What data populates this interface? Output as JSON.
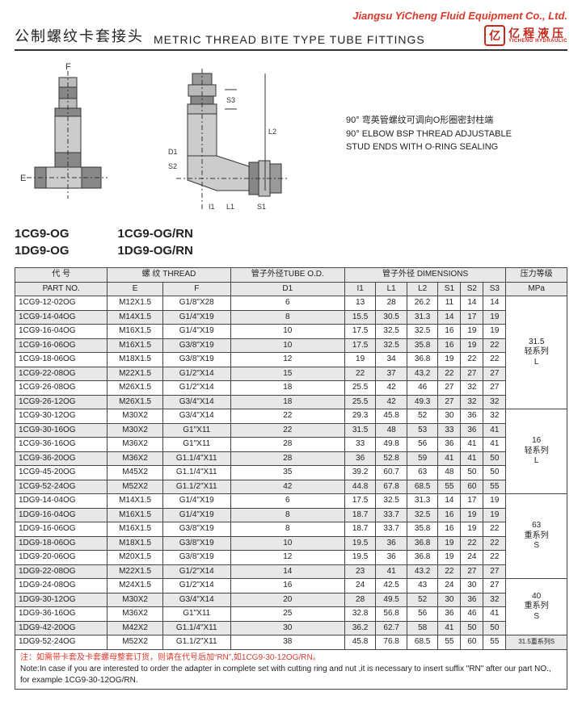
{
  "company": "Jiangsu YiCheng Fluid Equipment Co., Ltd.",
  "title_cn": "公制螺纹卡套接头",
  "title_en": "METRIC THREAD BITE TYPE TUBE FITTINGS",
  "logo_cn": "亿程液压",
  "logo_en": "YICHENG HYDRAULIC",
  "desc_cn": "90° 弯英管螺纹可调向O形圈密封柱端",
  "desc_en1": "90° ELBOW BSP THREAD ADJUSTABLE",
  "desc_en2": "STUD ENDS WITH O-RING SEALING",
  "models_a1": "1CG9-OG",
  "models_a2": "1DG9-OG",
  "models_b1": "1CG9-OG/RN",
  "models_b2": "1DG9-OG/RN",
  "hdr": {
    "code_cn": "代 号",
    "code_en": "PART NO.",
    "thread_cn": "螺 纹",
    "thread_en": "THREAD",
    "tube_cn": "管子外径",
    "tube_en": "TUBE O.D.",
    "dim_cn": "管子外径",
    "dim_en": "DIMENSIONS",
    "mpa_cn": "压力等级",
    "E": "E",
    "F": "F",
    "D1": "D1",
    "I1": "I1",
    "L1": "L1",
    "L2": "L2",
    "S1": "S1",
    "S2": "S2",
    "S3": "S3",
    "MPa": "MPa"
  },
  "rows": [
    {
      "pn": "1CG9-12-02OG",
      "e": "M12X1.5",
      "f": "G1/8\"X28",
      "d1": "6",
      "i1": "13",
      "l1": "28",
      "l2": "26.2",
      "s1": "11",
      "s2": "14",
      "s3": "14"
    },
    {
      "pn": "1CG9-14-04OG",
      "e": "M14X1.5",
      "f": "G1/4\"X19",
      "d1": "8",
      "i1": "15.5",
      "l1": "30.5",
      "l2": "31.3",
      "s1": "14",
      "s2": "17",
      "s3": "19"
    },
    {
      "pn": "1CG9-16-04OG",
      "e": "M16X1.5",
      "f": "G1/4\"X19",
      "d1": "10",
      "i1": "17.5",
      "l1": "32.5",
      "l2": "32.5",
      "s1": "16",
      "s2": "19",
      "s3": "19"
    },
    {
      "pn": "1CG9-16-06OG",
      "e": "M16X1.5",
      "f": "G3/8\"X19",
      "d1": "10",
      "i1": "17.5",
      "l1": "32.5",
      "l2": "35.8",
      "s1": "16",
      "s2": "19",
      "s3": "22"
    },
    {
      "pn": "1CG9-18-06OG",
      "e": "M18X1.5",
      "f": "G3/8\"X19",
      "d1": "12",
      "i1": "19",
      "l1": "34",
      "l2": "36.8",
      "s1": "19",
      "s2": "22",
      "s3": "22"
    },
    {
      "pn": "1CG9-22-08OG",
      "e": "M22X1.5",
      "f": "G1/2\"X14",
      "d1": "15",
      "i1": "22",
      "l1": "37",
      "l2": "43.2",
      "s1": "22",
      "s2": "27",
      "s3": "27"
    },
    {
      "pn": "1CG9-26-08OG",
      "e": "M26X1.5",
      "f": "G1/2\"X14",
      "d1": "18",
      "i1": "25.5",
      "l1": "42",
      "l2": "46",
      "s1": "27",
      "s2": "32",
      "s3": "27"
    },
    {
      "pn": "1CG9-26-12OG",
      "e": "M26X1.5",
      "f": "G3/4\"X14",
      "d1": "18",
      "i1": "25.5",
      "l1": "42",
      "l2": "49.3",
      "s1": "27",
      "s2": "32",
      "s3": "32"
    },
    {
      "pn": "1CG9-30-12OG",
      "e": "M30X2",
      "f": "G3/4\"X14",
      "d1": "22",
      "i1": "29.3",
      "l1": "45.8",
      "l2": "52",
      "s1": "30",
      "s2": "36",
      "s3": "32"
    },
    {
      "pn": "1CG9-30-16OG",
      "e": "M30X2",
      "f": "G1\"X11",
      "d1": "22",
      "i1": "31.5",
      "l1": "48",
      "l2": "53",
      "s1": "33",
      "s2": "36",
      "s3": "41"
    },
    {
      "pn": "1CG9-36-16OG",
      "e": "M36X2",
      "f": "G1\"X11",
      "d1": "28",
      "i1": "33",
      "l1": "49.8",
      "l2": "56",
      "s1": "36",
      "s2": "41",
      "s3": "41"
    },
    {
      "pn": "1CG9-36-20OG",
      "e": "M36X2",
      "f": "G1.1/4\"X11",
      "d1": "28",
      "i1": "36",
      "l1": "52.8",
      "l2": "59",
      "s1": "41",
      "s2": "41",
      "s3": "50"
    },
    {
      "pn": "1CG9-45-20OG",
      "e": "M45X2",
      "f": "G1.1/4\"X11",
      "d1": "35",
      "i1": "39.2",
      "l1": "60.7",
      "l2": "63",
      "s1": "48",
      "s2": "50",
      "s3": "50"
    },
    {
      "pn": "1CG9-52-24OG",
      "e": "M52X2",
      "f": "G1.1/2\"X11",
      "d1": "42",
      "i1": "44.8",
      "l1": "67.8",
      "l2": "68.5",
      "s1": "55",
      "s2": "60",
      "s3": "55"
    },
    {
      "pn": "1DG9-14-04OG",
      "e": "M14X1.5",
      "f": "G1/4\"X19",
      "d1": "6",
      "i1": "17.5",
      "l1": "32.5",
      "l2": "31.3",
      "s1": "14",
      "s2": "17",
      "s3": "19"
    },
    {
      "pn": "1DG9-16-04OG",
      "e": "M16X1.5",
      "f": "G1/4\"X19",
      "d1": "8",
      "i1": "18.7",
      "l1": "33.7",
      "l2": "32.5",
      "s1": "16",
      "s2": "19",
      "s3": "19"
    },
    {
      "pn": "1DG9-16-06OG",
      "e": "M16X1.5",
      "f": "G3/8\"X19",
      "d1": "8",
      "i1": "18.7",
      "l1": "33.7",
      "l2": "35.8",
      "s1": "16",
      "s2": "19",
      "s3": "22"
    },
    {
      "pn": "1DG9-18-06OG",
      "e": "M18X1.5",
      "f": "G3/8\"X19",
      "d1": "10",
      "i1": "19.5",
      "l1": "36",
      "l2": "36.8",
      "s1": "19",
      "s2": "22",
      "s3": "22"
    },
    {
      "pn": "1DG9-20-06OG",
      "e": "M20X1.5",
      "f": "G3/8\"X19",
      "d1": "12",
      "i1": "19.5",
      "l1": "36",
      "l2": "36.8",
      "s1": "19",
      "s2": "24",
      "s3": "22"
    },
    {
      "pn": "1DG9-22-08OG",
      "e": "M22X1.5",
      "f": "G1/2\"X14",
      "d1": "14",
      "i1": "23",
      "l1": "41",
      "l2": "43.2",
      "s1": "22",
      "s2": "27",
      "s3": "27"
    },
    {
      "pn": "1DG9-24-08OG",
      "e": "M24X1.5",
      "f": "G1/2\"X14",
      "d1": "16",
      "i1": "24",
      "l1": "42.5",
      "l2": "43",
      "s1": "24",
      "s2": "30",
      "s3": "27"
    },
    {
      "pn": "1DG9-30-12OG",
      "e": "M30X2",
      "f": "G3/4\"X14",
      "d1": "20",
      "i1": "28",
      "l1": "49.5",
      "l2": "52",
      "s1": "30",
      "s2": "36",
      "s3": "32"
    },
    {
      "pn": "1DG9-36-16OG",
      "e": "M36X2",
      "f": "G1\"X11",
      "d1": "25",
      "i1": "32.8",
      "l1": "56.8",
      "l2": "56",
      "s1": "36",
      "s2": "46",
      "s3": "41"
    },
    {
      "pn": "1DG9-42-20OG",
      "e": "M42X2",
      "f": "G1.1/4\"X11",
      "d1": "30",
      "i1": "36.2",
      "l1": "62.7",
      "l2": "58",
      "s1": "41",
      "s2": "50",
      "s3": "50"
    },
    {
      "pn": "1DG9-52-24OG",
      "e": "M52X2",
      "f": "G1.1/2\"X11",
      "d1": "38",
      "i1": "45.8",
      "l1": "76.8",
      "l2": "68.5",
      "s1": "55",
      "s2": "60",
      "s3": "55"
    }
  ],
  "mpa_groups": [
    {
      "span": 8,
      "mpa": "31.5",
      "series_cn": "轻系列",
      "series_en": "L"
    },
    {
      "span": 6,
      "mpa": "16",
      "series_cn": "轻系列",
      "series_en": "L"
    },
    {
      "span": 6,
      "mpa": "63",
      "series_cn": "重系列",
      "series_en": "S"
    },
    {
      "span": 4,
      "mpa": "40",
      "series_cn": "重系列",
      "series_en": "S"
    }
  ],
  "last_mpa": "31.5重系列S",
  "note_cn": "注：如需带卡套及卡套螺母整套订货，则请在代号后加“RN”,如1CG9-30-12OG/RN。",
  "note_en": "Note:In case if you are interested to order the adapter in complete set with cutting ring and nut ,it is necessary to insert suffix \"RN\" after our part NO., for example 1CG9-30-12OG/RN."
}
